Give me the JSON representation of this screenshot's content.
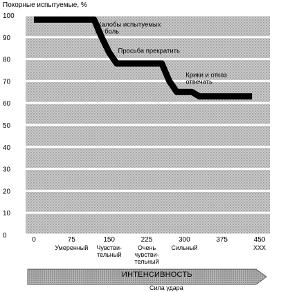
{
  "chart_data": {
    "type": "line",
    "title": "",
    "ylabel": "Покорные испытуемые, %",
    "xlabel": "",
    "ylim": [
      0,
      100
    ],
    "yticks": [
      0,
      10,
      20,
      30,
      40,
      50,
      60,
      70,
      80,
      90,
      100
    ],
    "xlim": [
      0,
      450
    ],
    "xticks": [
      0,
      75,
      150,
      225,
      300,
      375,
      450
    ],
    "category_labels": [
      {
        "x": 75,
        "lines": [
          "Умеренный"
        ]
      },
      {
        "x": 150,
        "lines": [
          "Чувстви-",
          "тельный"
        ]
      },
      {
        "x": 225,
        "lines": [
          "Очень",
          "чувстви-",
          "тельный"
        ]
      },
      {
        "x": 300,
        "lines": [
          "Сильный"
        ]
      },
      {
        "x": 450,
        "lines": [
          "XXX"
        ]
      }
    ],
    "series": [
      {
        "x": [
          0,
          105,
          120,
          135,
          150,
          165,
          255,
          270,
          285,
          300,
          315,
          330,
          435
        ],
        "y": [
          98,
          98,
          98,
          90,
          83,
          78,
          78,
          70,
          65,
          65,
          65,
          63,
          63
        ]
      }
    ],
    "annotations": [
      {
        "x": 120,
        "y": 98,
        "lines": [
          "Жалобы испытуемых",
          "на боль"
        ]
      },
      {
        "x": 165,
        "y": 86,
        "lines": [
          "Просьба прекратить"
        ]
      },
      {
        "x": 300,
        "y": 75,
        "lines": [
          "Крики и отказ",
          "отвечать"
        ]
      }
    ],
    "grid": true,
    "arrow": {
      "label": "ИНТЕНСИВНОСТЬ",
      "sublabel": "Сила удара"
    }
  }
}
